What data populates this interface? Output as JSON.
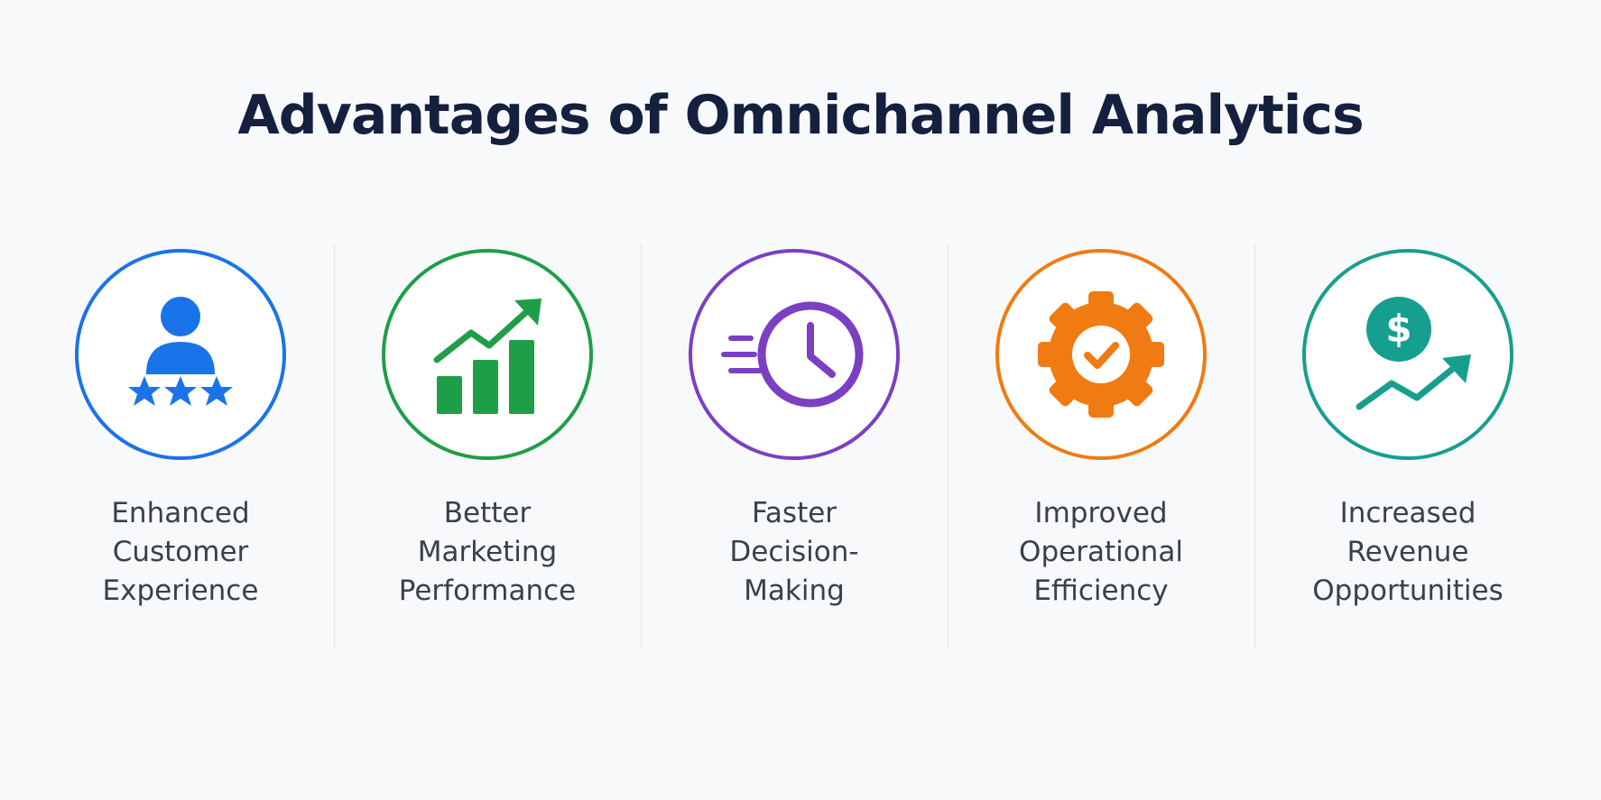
{
  "title": "Advantages of Omnichannel Analytics",
  "colors": {
    "title": "#15203f",
    "text": "#3a3f4a",
    "divider": "#e2e5ea",
    "background": "#f8f9fb"
  },
  "items": [
    {
      "label_lines": [
        "Enhanced",
        "Customer",
        "Experience"
      ],
      "icon": "customer-rating-icon",
      "color": "#1a73e8"
    },
    {
      "label_lines": [
        "Better",
        "Marketing",
        "Performance"
      ],
      "icon": "growth-chart-icon",
      "color": "#1e9e47"
    },
    {
      "label_lines": [
        "Faster",
        "Decision-",
        "Making"
      ],
      "icon": "fast-clock-icon",
      "color": "#7b3fc4"
    },
    {
      "label_lines": [
        "Improved",
        "Operational",
        "Efficiency"
      ],
      "icon": "gear-check-icon",
      "color": "#f07b12"
    },
    {
      "label_lines": [
        "Increased",
        "Revenue",
        "Opportunities"
      ],
      "icon": "revenue-growth-icon",
      "color": "#169f8e"
    }
  ]
}
